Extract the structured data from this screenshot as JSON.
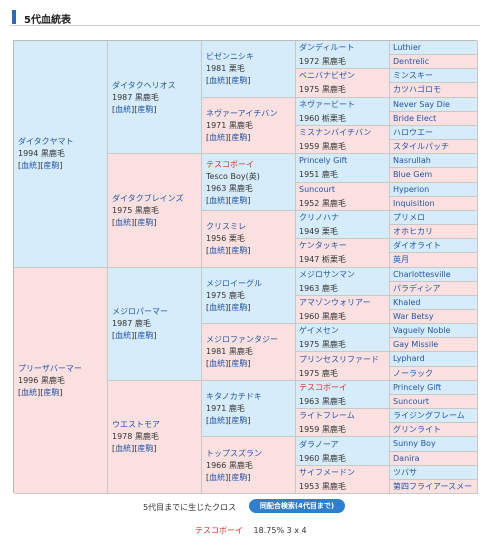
{
  "section_title": "5代血統表",
  "link_blood": "血統",
  "link_produce": "産駒",
  "g1": [
    {
      "name": "ダイタクヤマト",
      "year": "1994",
      "coat": "黒鹿毛"
    },
    {
      "name": "プリーザバーマー",
      "year": "1996",
      "coat": "黒鹿毛"
    }
  ],
  "g2": [
    {
      "name": "ダイタクヘリオス",
      "year": "1987",
      "coat": "黒鹿毛"
    },
    {
      "name": "ダイタクブレインズ",
      "year": "1975",
      "coat": "黒鹿毛"
    },
    {
      "name": "メジロパーマー",
      "year": "1987",
      "coat": "鹿毛"
    },
    {
      "name": "ウエストモア",
      "year": "1978",
      "coat": "黒鹿毛"
    }
  ],
  "g3": [
    {
      "name": "ビゼンニシキ",
      "alias": "",
      "year": "1981",
      "coat": "栗毛"
    },
    {
      "name": "ネヴァーアイチバン",
      "alias": "",
      "year": "1971",
      "coat": "黒鹿毛"
    },
    {
      "name": "テスコボーイ",
      "alias": "Tesco Boy(英)",
      "year": "1963",
      "coat": "黒鹿毛"
    },
    {
      "name": "クリスミレ",
      "alias": "",
      "year": "1956",
      "coat": "栗毛"
    },
    {
      "name": "メジロイーグル",
      "alias": "",
      "year": "1975",
      "coat": "鹿毛"
    },
    {
      "name": "メジロファンタジー",
      "alias": "",
      "year": "1981",
      "coat": "黒鹿毛"
    },
    {
      "name": "キタノカチドキ",
      "alias": "",
      "year": "1971",
      "coat": "鹿毛"
    },
    {
      "name": "トップスズラン",
      "alias": "",
      "year": "1966",
      "coat": "黒鹿毛"
    }
  ],
  "g4": [
    {
      "name": "ダンディルート",
      "info": "1972 黒鹿毛"
    },
    {
      "name": "ベニバナビゼン",
      "info": "1975 黒鹿毛"
    },
    {
      "name": "ネヴァービート",
      "info": "1960 栃栗毛"
    },
    {
      "name": "ミスナンバイチバン",
      "info": "1959 黒鹿毛"
    },
    {
      "name": "Princely Gift",
      "info": "1951 鹿毛"
    },
    {
      "name": "Suncourt",
      "info": "1952 黒鹿毛"
    },
    {
      "name": "クリノハナ",
      "info": "1949 栗毛"
    },
    {
      "name": "ケンタッキー",
      "info": "1947 栃栗毛"
    },
    {
      "name": "メジロサンマン",
      "info": "1963 鹿毛"
    },
    {
      "name": "アマゾンウォリアー",
      "info": "1960 黒鹿毛"
    },
    {
      "name": "ゲイメセン",
      "info": "1975 黒鹿毛"
    },
    {
      "name": "プリンセスリファード",
      "info": "1975 鹿毛"
    },
    {
      "name": "テスコボーイ",
      "info": "1963 黒鹿毛"
    },
    {
      "name": "ライトフレーム",
      "info": "1959 黒鹿毛"
    },
    {
      "name": "ダラノーア",
      "info": "1960 黒鹿毛"
    },
    {
      "name": "サイフメードン",
      "info": "1953 黒鹿毛"
    }
  ],
  "g5": [
    "Luthier",
    "Dentrelic",
    "ミンスキー",
    "カツハゴロモ",
    "Never Say Die",
    "Bride Elect",
    "ハロウエー",
    "スタイルパッチ",
    "Nasrullah",
    "Blue Gem",
    "Hyperion",
    "Inquisition",
    "プリメロ",
    "オホヒカリ",
    "ダイオライト",
    "英月",
    "Charlottesville",
    "パラディシア",
    "Khaled",
    "War Betsy",
    "Vaguely Noble",
    "Gay Missile",
    "Lyphard",
    "ノーラック",
    "Princely Gift",
    "Suncourt",
    "ライジングフレーム",
    "グリンライト",
    "Sunny Boy",
    "Danira",
    "ツバサ",
    "第四フライアースメードン"
  ],
  "cross": {
    "label": "5代目までに生じたクロス",
    "button": "同配合検索(4代目まで)",
    "name": "テスコボーイ",
    "value": "18.75%  3 x 4"
  }
}
